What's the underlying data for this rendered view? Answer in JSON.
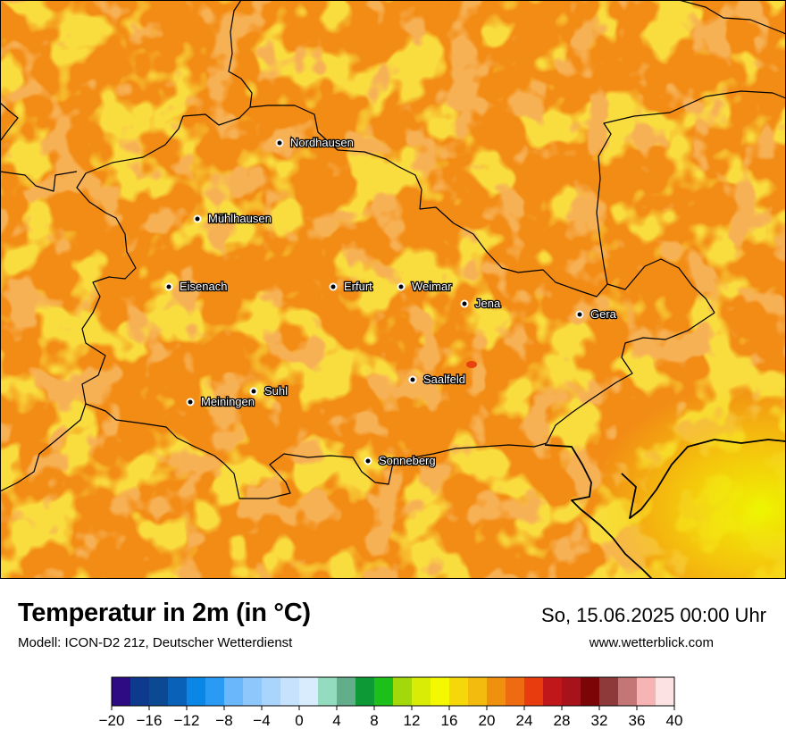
{
  "header": {
    "title": "Temperatur in 2m (in °C)",
    "subtitle": "Modell: ICON-D2 21z, Deutscher Wetterdienst",
    "datetime": "So, 15.06.2025 00:00 Uhr",
    "website": "www.wetterblick.com"
  },
  "cities": [
    {
      "name": "Nordhausen"
    },
    {
      "name": "Mühlhausen"
    },
    {
      "name": "Eisenach"
    },
    {
      "name": "Erfurt"
    },
    {
      "name": "Weimar"
    },
    {
      "name": "Jena"
    },
    {
      "name": "Gera"
    },
    {
      "name": "Saalfeld"
    },
    {
      "name": "Suhl"
    },
    {
      "name": "Meiningen"
    },
    {
      "name": "Sonneberg"
    }
  ],
  "legend": {
    "tick_labels": [
      "−20",
      "−16",
      "−12",
      "−8",
      "−4",
      "0",
      "4",
      "8",
      "12",
      "16",
      "20",
      "24",
      "28",
      "32",
      "36",
      "40"
    ],
    "min": -20,
    "max": 40,
    "step": 2,
    "colors": [
      "#2e0a83",
      "#0d3a8c",
      "#0b4a93",
      "#0a62b8",
      "#0a86e6",
      "#2a9bf5",
      "#6ab8fb",
      "#8dc7fb",
      "#a9d4fc",
      "#c6e2fd",
      "#d9ecfe",
      "#94dcc0",
      "#62ad8a",
      "#0d9a36",
      "#1dbf1a",
      "#a3d90b",
      "#d9ec05",
      "#f4f800",
      "#f6d70a",
      "#f2bb0d",
      "#f0900f",
      "#ee6b12",
      "#e83c0e",
      "#c0181a",
      "#a8121a",
      "#7c0508",
      "#8e3a3a",
      "#c47676",
      "#f7b4b4",
      "#fde2e4"
    ]
  },
  "colors": {
    "land_base": "#f28c15",
    "light_patch": "#f2b70d",
    "dark_patch": "#ee7116",
    "warm_patch": "#f5d10a",
    "border": "#000000",
    "city_dot": "#000000"
  }
}
